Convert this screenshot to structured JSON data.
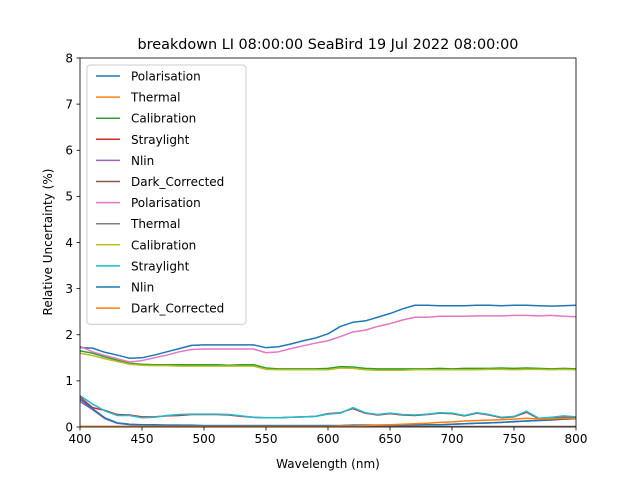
{
  "chart_data": {
    "type": "line",
    "title": "breakdown LI 08:00:00 SeaBird 19 Jul 2022 08:00:00",
    "xlabel": "Wavelength (nm)",
    "ylabel": "Relative Uncertainty (%)",
    "xlim": [
      400,
      800
    ],
    "ylim": [
      0,
      8
    ],
    "xticks": [
      400,
      450,
      500,
      550,
      600,
      650,
      700,
      750,
      800
    ],
    "yticks": [
      0,
      1,
      2,
      3,
      4,
      5,
      6,
      7,
      8
    ],
    "grid": false,
    "legend_position": "top-left",
    "series": [
      {
        "name": "Polarisation",
        "color": "#1f77b4",
        "x": [
          400,
          410,
          420,
          430,
          440,
          450,
          460,
          470,
          480,
          490,
          500,
          510,
          520,
          530,
          540,
          550,
          560,
          570,
          580,
          590,
          600,
          610,
          620,
          630,
          640,
          650,
          660,
          670,
          680,
          690,
          700,
          710,
          720,
          730,
          740,
          750,
          760,
          770,
          780,
          790,
          800
        ],
        "y": [
          1.72,
          1.71,
          1.62,
          1.56,
          1.49,
          1.5,
          1.56,
          1.63,
          1.7,
          1.77,
          1.78,
          1.78,
          1.78,
          1.78,
          1.78,
          1.72,
          1.74,
          1.8,
          1.87,
          1.93,
          2.02,
          2.18,
          2.27,
          2.3,
          2.38,
          2.46,
          2.56,
          2.64,
          2.64,
          2.63,
          2.63,
          2.63,
          2.64,
          2.64,
          2.63,
          2.64,
          2.64,
          2.63,
          2.62,
          2.63,
          2.64
        ]
      },
      {
        "name": "Thermal",
        "color": "#ff7f0e",
        "x": [
          400,
          450,
          500,
          550,
          600,
          650,
          700,
          750,
          800
        ],
        "y": [
          0,
          0,
          0,
          0,
          0,
          0,
          0,
          0,
          0
        ]
      },
      {
        "name": "Calibration",
        "color": "#2ca02c",
        "x": [
          400,
          410,
          420,
          430,
          440,
          450,
          460,
          470,
          480,
          490,
          500,
          510,
          520,
          530,
          540,
          550,
          560,
          570,
          580,
          590,
          600,
          610,
          620,
          630,
          640,
          650,
          660,
          670,
          680,
          690,
          700,
          710,
          720,
          730,
          740,
          750,
          760,
          770,
          780,
          790,
          800
        ],
        "y": [
          1.65,
          1.6,
          1.52,
          1.45,
          1.38,
          1.36,
          1.35,
          1.35,
          1.35,
          1.35,
          1.35,
          1.35,
          1.34,
          1.35,
          1.35,
          1.28,
          1.26,
          1.26,
          1.26,
          1.26,
          1.27,
          1.31,
          1.3,
          1.27,
          1.26,
          1.26,
          1.26,
          1.26,
          1.26,
          1.27,
          1.26,
          1.27,
          1.27,
          1.27,
          1.28,
          1.27,
          1.28,
          1.27,
          1.26,
          1.27,
          1.26
        ]
      },
      {
        "name": "Straylight",
        "color": "#d62728",
        "x": [
          400,
          410,
          420,
          430,
          440,
          450,
          460,
          470,
          480,
          490,
          500,
          510,
          520,
          530,
          540,
          550,
          560,
          570,
          580,
          590,
          600,
          610,
          620,
          630,
          640,
          650,
          660,
          670,
          680,
          690,
          700,
          710,
          720,
          730,
          740,
          750,
          760,
          770,
          780,
          790,
          800
        ],
        "y": [
          0.65,
          0.42,
          0.36,
          0.27,
          0.26,
          0.22,
          0.22,
          0.24,
          0.25,
          0.27,
          0.27,
          0.27,
          0.26,
          0.23,
          0.21,
          0.2,
          0.2,
          0.21,
          0.22,
          0.23,
          0.29,
          0.31,
          0.4,
          0.3,
          0.26,
          0.29,
          0.26,
          0.25,
          0.27,
          0.3,
          0.29,
          0.24,
          0.3,
          0.26,
          0.2,
          0.22,
          0.32,
          0.18,
          0.2,
          0.22,
          0.21
        ]
      },
      {
        "name": "Nlin",
        "color": "#9467bd",
        "x": [
          400,
          410,
          420,
          430,
          440,
          450,
          460,
          470,
          480,
          490,
          500,
          510,
          520,
          530,
          540,
          550,
          560,
          570,
          580,
          590,
          600,
          610,
          620,
          630,
          640,
          650,
          660,
          670,
          680,
          690,
          700,
          710,
          720,
          730,
          740,
          750,
          760,
          770,
          780,
          790,
          800
        ],
        "y": [
          0.55,
          0.38,
          0.18,
          0.08,
          0.05,
          0.05,
          0.04,
          0.04,
          0.04,
          0.03,
          0.03,
          0.03,
          0.03,
          0.03,
          0.03,
          0.03,
          0.03,
          0.03,
          0.03,
          0.03,
          0.03,
          0.03,
          0.04,
          0.04,
          0.04,
          0.04,
          0.04,
          0.04,
          0.05,
          0.05,
          0.06,
          0.07,
          0.08,
          0.09,
          0.1,
          0.11,
          0.13,
          0.14,
          0.15,
          0.17,
          0.18
        ]
      },
      {
        "name": "Dark_Corrected",
        "color": "#8c564b",
        "x": [
          400,
          450,
          500,
          550,
          600,
          650,
          700,
          750,
          800
        ],
        "y": [
          0.01,
          0.01,
          0.01,
          0.01,
          0.01,
          0.01,
          0.01,
          0.01,
          0.01
        ]
      },
      {
        "name": "Polarisation",
        "color": "#e377c2",
        "x": [
          400,
          410,
          420,
          430,
          440,
          450,
          460,
          470,
          480,
          490,
          500,
          510,
          520,
          530,
          540,
          550,
          560,
          570,
          580,
          590,
          600,
          610,
          620,
          630,
          640,
          650,
          660,
          670,
          680,
          690,
          700,
          710,
          720,
          730,
          740,
          750,
          760,
          770,
          780,
          790,
          800
        ],
        "y": [
          1.75,
          1.63,
          1.55,
          1.48,
          1.41,
          1.44,
          1.5,
          1.56,
          1.63,
          1.68,
          1.69,
          1.69,
          1.69,
          1.69,
          1.69,
          1.61,
          1.63,
          1.7,
          1.76,
          1.82,
          1.87,
          1.96,
          2.06,
          2.1,
          2.18,
          2.24,
          2.32,
          2.38,
          2.38,
          2.4,
          2.4,
          2.4,
          2.41,
          2.41,
          2.41,
          2.42,
          2.42,
          2.41,
          2.42,
          2.4,
          2.39
        ]
      },
      {
        "name": "Thermal",
        "color": "#7f7f7f",
        "x": [
          400,
          450,
          500,
          550,
          600,
          650,
          700,
          750,
          800
        ],
        "y": [
          0,
          0,
          0,
          0,
          0,
          0,
          0,
          0,
          0
        ]
      },
      {
        "name": "Calibration",
        "color": "#bcbd22",
        "x": [
          400,
          410,
          420,
          430,
          440,
          450,
          460,
          470,
          480,
          490,
          500,
          510,
          520,
          530,
          540,
          550,
          560,
          570,
          580,
          590,
          600,
          610,
          620,
          630,
          640,
          650,
          660,
          670,
          680,
          690,
          700,
          710,
          720,
          730,
          740,
          750,
          760,
          770,
          780,
          790,
          800
        ],
        "y": [
          1.6,
          1.55,
          1.48,
          1.42,
          1.36,
          1.34,
          1.33,
          1.33,
          1.32,
          1.32,
          1.32,
          1.32,
          1.32,
          1.32,
          1.32,
          1.25,
          1.24,
          1.24,
          1.24,
          1.24,
          1.24,
          1.28,
          1.27,
          1.24,
          1.23,
          1.23,
          1.23,
          1.24,
          1.24,
          1.24,
          1.24,
          1.24,
          1.24,
          1.25,
          1.25,
          1.24,
          1.25,
          1.25,
          1.24,
          1.25,
          1.24
        ]
      },
      {
        "name": "Straylight",
        "color": "#17becf",
        "x": [
          400,
          410,
          420,
          430,
          440,
          450,
          460,
          470,
          480,
          490,
          500,
          510,
          520,
          530,
          540,
          550,
          560,
          570,
          580,
          590,
          600,
          610,
          620,
          630,
          640,
          650,
          660,
          670,
          680,
          690,
          700,
          710,
          720,
          730,
          740,
          750,
          760,
          770,
          780,
          790,
          800
        ],
        "y": [
          0.68,
          0.5,
          0.35,
          0.25,
          0.25,
          0.2,
          0.21,
          0.25,
          0.27,
          0.28,
          0.28,
          0.28,
          0.27,
          0.24,
          0.21,
          0.2,
          0.2,
          0.21,
          0.22,
          0.23,
          0.28,
          0.3,
          0.42,
          0.31,
          0.27,
          0.3,
          0.27,
          0.26,
          0.28,
          0.31,
          0.3,
          0.25,
          0.31,
          0.27,
          0.21,
          0.23,
          0.34,
          0.19,
          0.21,
          0.24,
          0.22
        ]
      },
      {
        "name": "Nlin",
        "color": "#1f77b4",
        "x": [
          400,
          410,
          420,
          430,
          440,
          450,
          460,
          470,
          480,
          490,
          500,
          510,
          520,
          530,
          540,
          550,
          560,
          570,
          580,
          590,
          600,
          610,
          620,
          630,
          640,
          650,
          660,
          670,
          680,
          690,
          700,
          710,
          720,
          730,
          740,
          750,
          760,
          770,
          780,
          790,
          800
        ],
        "y": [
          0.6,
          0.4,
          0.2,
          0.09,
          0.06,
          0.05,
          0.05,
          0.04,
          0.04,
          0.04,
          0.03,
          0.03,
          0.03,
          0.03,
          0.03,
          0.03,
          0.03,
          0.03,
          0.03,
          0.03,
          0.03,
          0.03,
          0.04,
          0.04,
          0.04,
          0.04,
          0.04,
          0.05,
          0.05,
          0.05,
          0.06,
          0.07,
          0.08,
          0.09,
          0.1,
          0.12,
          0.13,
          0.14,
          0.16,
          0.17,
          0.18
        ]
      },
      {
        "name": "Dark_Corrected",
        "color": "#ff7f0e",
        "x": [
          400,
          410,
          420,
          430,
          440,
          450,
          460,
          470,
          480,
          490,
          500,
          510,
          520,
          530,
          540,
          550,
          560,
          570,
          580,
          590,
          600,
          610,
          620,
          630,
          640,
          650,
          660,
          670,
          680,
          690,
          700,
          710,
          720,
          730,
          740,
          750,
          760,
          770,
          780,
          790,
          800
        ],
        "y": [
          0.01,
          0.01,
          0.01,
          0.01,
          0.01,
          0.01,
          0.01,
          0.01,
          0.01,
          0.01,
          0.01,
          0.01,
          0.01,
          0.01,
          0.01,
          0.01,
          0.01,
          0.01,
          0.01,
          0.01,
          0.01,
          0.02,
          0.02,
          0.03,
          0.04,
          0.05,
          0.06,
          0.07,
          0.08,
          0.1,
          0.11,
          0.13,
          0.14,
          0.15,
          0.16,
          0.17,
          0.19,
          0.17,
          0.18,
          0.19,
          0.18
        ]
      }
    ]
  }
}
